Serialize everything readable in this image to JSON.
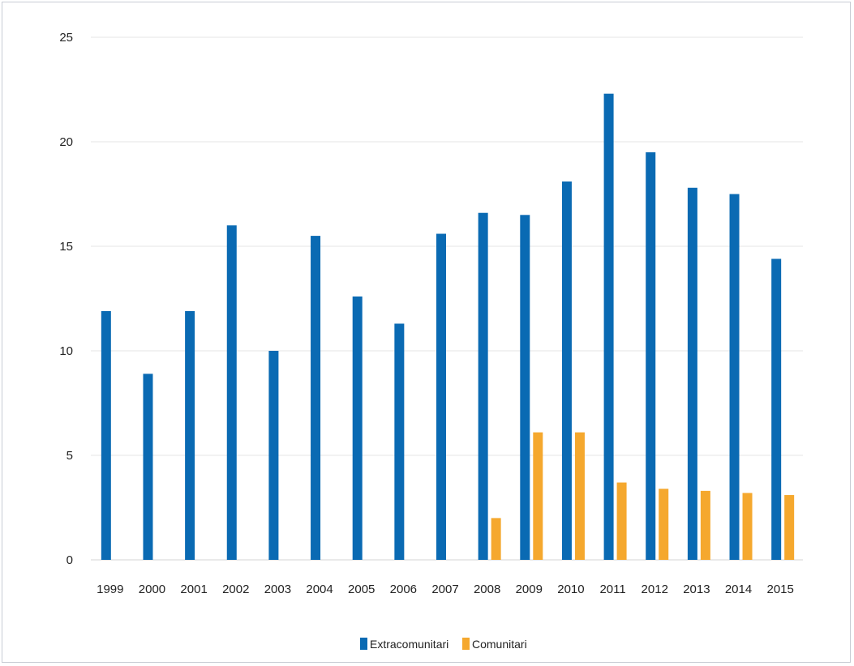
{
  "chart_data": {
    "type": "bar",
    "categories": [
      "1999",
      "2000",
      "2001",
      "2002",
      "2003",
      "2004",
      "2005",
      "2006",
      "2007",
      "2008",
      "2009",
      "2010",
      "2011",
      "2012",
      "2013",
      "2014",
      "2015"
    ],
    "series": [
      {
        "name": "Extracomunitari",
        "color": "#0a6ab3",
        "values": [
          11.9,
          8.9,
          11.9,
          16.0,
          10.0,
          15.5,
          12.6,
          11.3,
          15.6,
          16.6,
          16.5,
          18.1,
          22.3,
          19.5,
          17.8,
          17.5,
          14.4
        ]
      },
      {
        "name": "Comunitari",
        "color": "#f5a82e",
        "values": [
          null,
          null,
          null,
          null,
          null,
          null,
          null,
          null,
          null,
          2.0,
          6.1,
          6.1,
          3.7,
          3.4,
          3.3,
          3.2,
          3.1
        ]
      }
    ],
    "title": "",
    "xlabel": "",
    "ylabel": "",
    "ylim": [
      0,
      25
    ],
    "yticks": [
      "0",
      "5",
      "10",
      "15",
      "20",
      "25"
    ],
    "grid": true,
    "legend_position": "bottom-center"
  }
}
